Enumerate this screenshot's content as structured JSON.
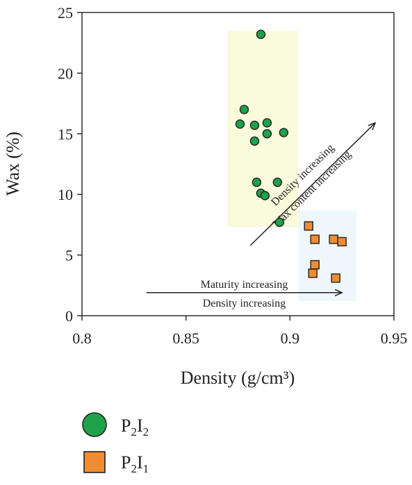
{
  "chart_data": {
    "type": "scatter",
    "xlabel": "Density (g/cm³)",
    "ylabel": "Wax (%)",
    "xlim": [
      0.8,
      0.95
    ],
    "ylim": [
      0,
      25
    ],
    "x_ticks": [
      "0.8",
      "0.85",
      "0.9",
      "0.95"
    ],
    "y_ticks": [
      "0",
      "5",
      "10",
      "15",
      "20",
      "25"
    ],
    "x_tick_values": [
      0.8,
      0.85,
      0.9,
      0.95
    ],
    "y_tick_values": [
      0,
      5,
      10,
      15,
      20,
      25
    ],
    "grid": false,
    "legend_position": "bottom-left, below plot",
    "series": [
      {
        "name": "P2I2",
        "label_main": "P",
        "label_sub1": "2",
        "label_mid": "I",
        "label_sub2": "2",
        "marker": "circle",
        "color": "#1ea24a",
        "points": [
          [
            0.886,
            23.2
          ],
          [
            0.878,
            17.0
          ],
          [
            0.876,
            15.8
          ],
          [
            0.883,
            15.7
          ],
          [
            0.889,
            15.9
          ],
          [
            0.897,
            15.1
          ],
          [
            0.889,
            15.0
          ],
          [
            0.883,
            14.4
          ],
          [
            0.884,
            11.0
          ],
          [
            0.894,
            11.0
          ],
          [
            0.886,
            10.1
          ],
          [
            0.888,
            9.9
          ],
          [
            0.895,
            7.7
          ]
        ]
      },
      {
        "name": "P2I1",
        "label_main": "P",
        "label_sub1": "2",
        "label_mid": "I",
        "label_sub2": "1",
        "marker": "square",
        "color": "#f08c32",
        "points": [
          [
            0.909,
            7.4
          ],
          [
            0.912,
            6.3
          ],
          [
            0.921,
            6.3
          ],
          [
            0.925,
            6.1
          ],
          [
            0.912,
            4.2
          ],
          [
            0.911,
            3.5
          ],
          [
            0.922,
            3.1
          ]
        ]
      }
    ],
    "regions": [
      {
        "name": "P2I2 range",
        "x": [
          0.87,
          0.904
        ],
        "y": [
          7.3,
          23.5
        ],
        "color": "#fafadc"
      },
      {
        "name": "P2I1 range",
        "x": [
          0.904,
          0.932
        ],
        "y": [
          1.2,
          8.7
        ],
        "color": "#eef7fc"
      }
    ],
    "annotations": {
      "horizontal_arrow": {
        "from": [
          0.831,
          1.9
        ],
        "to": [
          0.925,
          1.9
        ],
        "label_above": "Maturity increasing",
        "label_below": "Density increasing"
      },
      "diagonal_arrow": {
        "from": [
          0.881,
          5.8
        ],
        "to": [
          0.941,
          15.9
        ],
        "label_left": "Wax content increasing",
        "label_right": "Density increasing"
      }
    }
  }
}
